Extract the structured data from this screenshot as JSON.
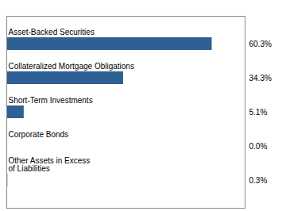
{
  "chart_data": {
    "type": "bar",
    "orientation": "horizontal",
    "categories": [
      "Other Assets in Excess\nof Liabilities",
      "Corporate Bonds",
      "Short-Term Investments",
      "Collateralized Mortgage Obligations",
      "Asset-Backed Securities"
    ],
    "values": [
      0.3,
      0.0,
      5.1,
      34.3,
      60.3
    ],
    "value_labels": [
      "0.3%",
      "0.0%",
      "5.1%",
      "34.3%",
      "60.3%"
    ],
    "data_labels": true,
    "color": "#2e6094",
    "xlim": [
      0,
      70
    ],
    "tick_labels": false,
    "grid": false
  }
}
